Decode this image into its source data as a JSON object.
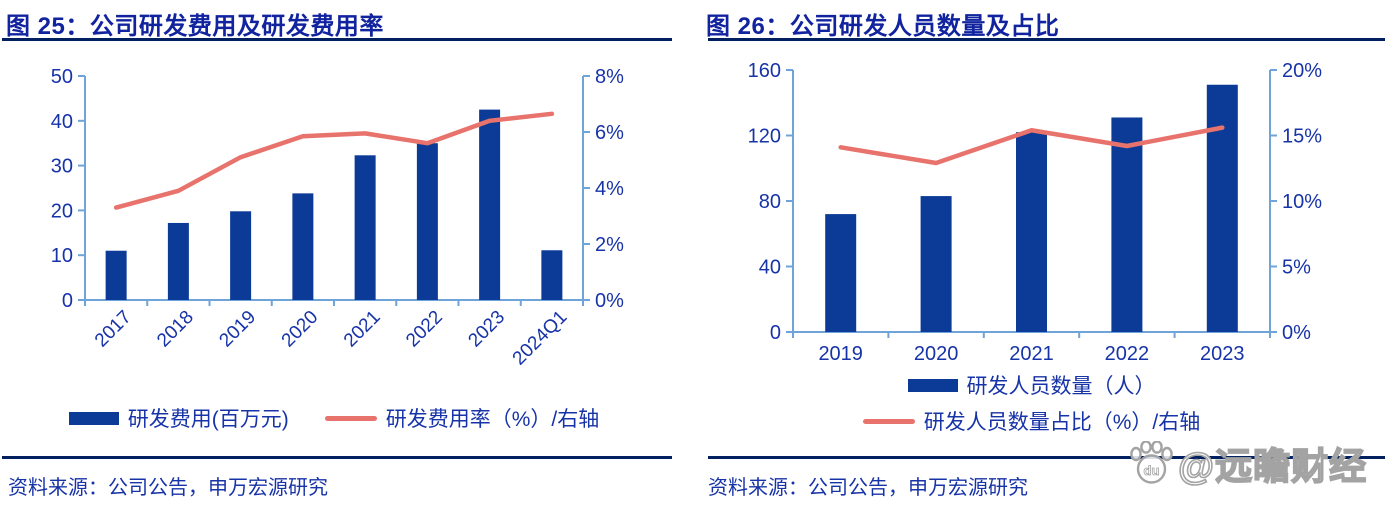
{
  "colors": {
    "bar": "#0b3b96",
    "line": "#e8736c",
    "axis": "#6fa4d8",
    "tick_text": "#1733a8",
    "title_text": "#11239e",
    "rule": "#002060",
    "watermark_stroke": "#a3a3a3"
  },
  "chart_data": [
    {
      "type": "bar+line",
      "title": "图 25：公司研发费用及研发费用率",
      "categories": [
        "2017",
        "2018",
        "2019",
        "2020",
        "2021",
        "2022",
        "2023",
        "2024Q1"
      ],
      "series": [
        {
          "name": "研发费用(百万元)",
          "type": "bar",
          "axis": "left",
          "values": [
            11,
            17.2,
            19.8,
            23.8,
            32.3,
            35,
            42.5,
            11.1
          ]
        },
        {
          "name": "研发费用率（%）/右轴",
          "type": "line",
          "axis": "right",
          "values": [
            3.3,
            3.9,
            5.1,
            5.85,
            5.95,
            5.6,
            6.4,
            6.65
          ]
        }
      ],
      "left_axis": {
        "min": 0,
        "max": 50,
        "ticks": [
          {
            "v": 0,
            "label": "0"
          },
          {
            "v": 10,
            "label": "10"
          },
          {
            "v": 20,
            "label": "20"
          },
          {
            "v": 30,
            "label": "30"
          },
          {
            "v": 40,
            "label": "40"
          },
          {
            "v": 50,
            "label": "50"
          }
        ]
      },
      "right_axis": {
        "min": 0,
        "max": 8,
        "ticks": [
          {
            "v": 0,
            "label": "0%"
          },
          {
            "v": 2,
            "label": "2%"
          },
          {
            "v": 4,
            "label": "4%"
          },
          {
            "v": 6,
            "label": "6%"
          },
          {
            "v": 8,
            "label": "8%"
          }
        ]
      },
      "x_label_rotation": -45,
      "legend_position": "bottom",
      "grid": false
    },
    {
      "type": "bar+line",
      "title": "图 26：公司研发人员数量及占比",
      "categories": [
        "2019",
        "2020",
        "2021",
        "2022",
        "2023"
      ],
      "series": [
        {
          "name": "研发人员数量（人）",
          "type": "bar",
          "axis": "left",
          "values": [
            72,
            83,
            122,
            131,
            151
          ]
        },
        {
          "name": "研发人员数量占比（%）/右轴",
          "type": "line",
          "axis": "right",
          "values": [
            14.1,
            12.9,
            15.4,
            14.2,
            15.6
          ]
        }
      ],
      "left_axis": {
        "min": 0,
        "max": 160,
        "ticks": [
          {
            "v": 0,
            "label": "0"
          },
          {
            "v": 40,
            "label": "40"
          },
          {
            "v": 80,
            "label": "80"
          },
          {
            "v": 120,
            "label": "120"
          },
          {
            "v": 160,
            "label": "160"
          }
        ]
      },
      "right_axis": {
        "min": 0,
        "max": 20,
        "ticks": [
          {
            "v": 0,
            "label": "0%"
          },
          {
            "v": 5,
            "label": "5%"
          },
          {
            "v": 10,
            "label": "10%"
          },
          {
            "v": 15,
            "label": "15%"
          },
          {
            "v": 20,
            "label": "20%"
          }
        ]
      },
      "x_label_rotation": 0,
      "legend_position": "bottom",
      "grid": false
    }
  ],
  "sources": [
    "资料来源：公司公告，申万宏源研究",
    "资料来源：公司公告，申万宏源研究"
  ],
  "watermark": {
    "text": "@远瞻财经",
    "icon": "baidu-paw-icon",
    "icon_text": "du"
  }
}
